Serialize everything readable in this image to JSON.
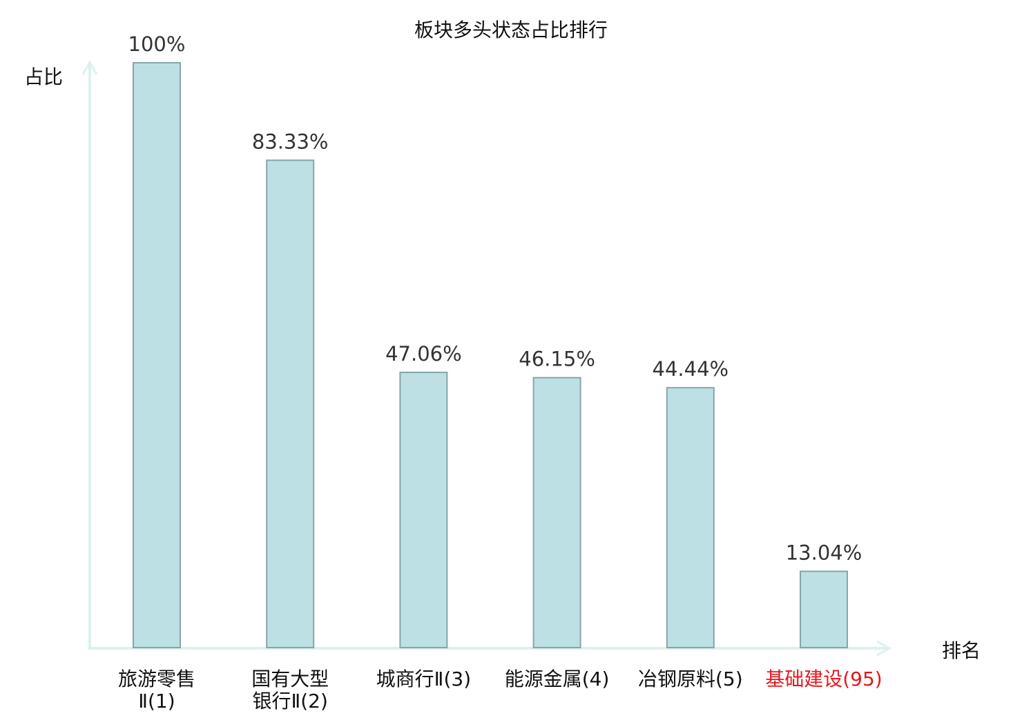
{
  "chart_data": {
    "type": "bar",
    "title": "板块多头状态占比排行",
    "xlabel": "排名",
    "ylabel": "占比",
    "ylim": [
      0,
      100
    ],
    "grid": false,
    "categories": [
      {
        "lines": [
          "旅游零售",
          "Ⅱ(1)"
        ],
        "highlight": false
      },
      {
        "lines": [
          "国有大型",
          "银行Ⅱ(2)"
        ],
        "highlight": false
      },
      {
        "lines": [
          "城商行Ⅱ(3)"
        ],
        "highlight": false
      },
      {
        "lines": [
          "能源金属(4)"
        ],
        "highlight": false
      },
      {
        "lines": [
          "冶钢原料(5)"
        ],
        "highlight": false
      },
      {
        "lines": [
          "基础建设(95)"
        ],
        "highlight": true
      }
    ],
    "values": [
      100,
      83.33,
      47.06,
      46.15,
      44.44,
      13.04
    ],
    "value_labels": [
      "100%",
      "83.33%",
      "47.06%",
      "46.15%",
      "44.44%",
      "13.04%"
    ],
    "colors": {
      "bar_fill": "#bce0e3",
      "bar_stroke": "#86a5a8",
      "axis": "#dcf1ef",
      "text": "#111111",
      "value_text": "#333333",
      "highlight": "#e8161a"
    }
  }
}
